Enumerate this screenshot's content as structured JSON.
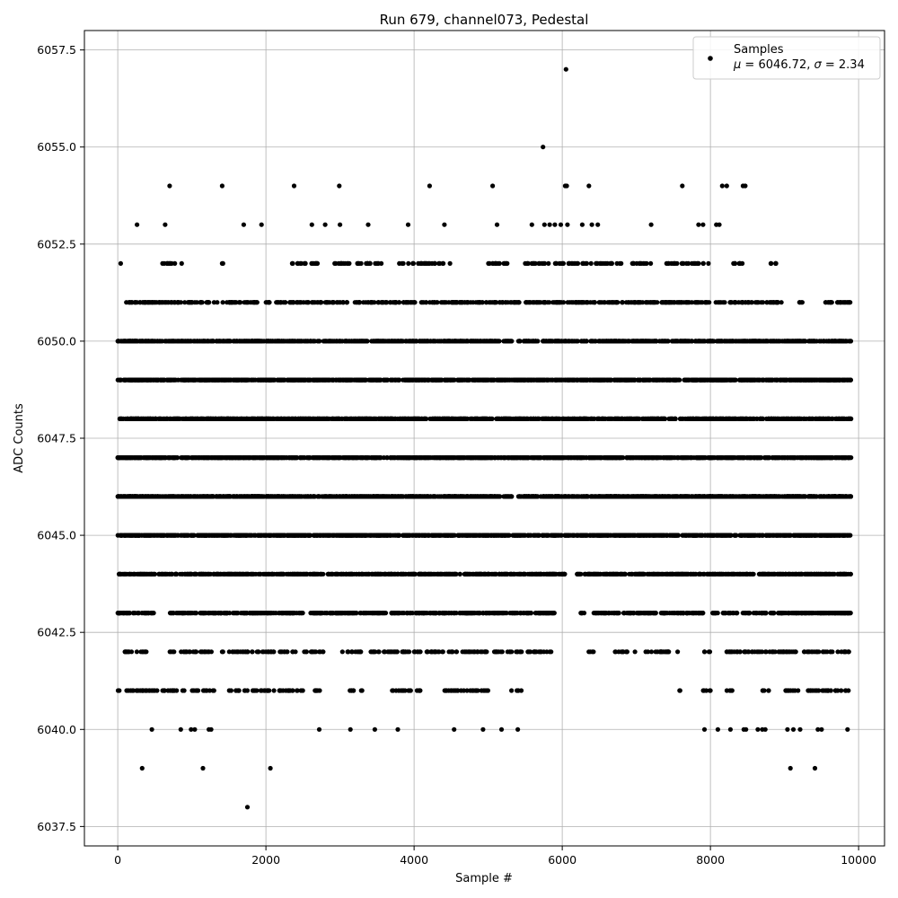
{
  "chart_data": {
    "type": "scatter",
    "title": "Run 679, channel073, Pedestal",
    "xlabel": "Sample #",
    "ylabel": "ADC Counts",
    "xlim": [
      -450,
      10350
    ],
    "ylim": [
      6037.0,
      6058.0
    ],
    "xticks": [
      0,
      2000,
      4000,
      6000,
      8000,
      10000
    ],
    "xtick_labels": [
      "0",
      "2000",
      "4000",
      "6000",
      "8000",
      "10000"
    ],
    "yticks": [
      6037.5,
      6040.0,
      6042.5,
      6045.0,
      6047.5,
      6050.0,
      6052.5,
      6055.0,
      6057.5
    ],
    "ytick_labels": [
      "6037.5",
      "6040.0",
      "6042.5",
      "6045.0",
      "6047.5",
      "6050.0",
      "6052.5",
      "6055.0",
      "6057.5"
    ],
    "grid": true,
    "legend": {
      "position": "upper-right",
      "series_label": "Samples",
      "stats_mu": "6046.72",
      "stats_sigma": "2.34"
    },
    "series": [
      {
        "name": "Samples",
        "color": "#000000",
        "n_samples": 9900,
        "mean": 6046.72,
        "std": 2.34,
        "bands": [
          {
            "y": 6041,
            "ranges": [
              [
                0,
                900
              ],
              [
                1000,
                1300
              ],
              [
                1500,
                2500
              ],
              [
                2600,
                2800
              ],
              [
                3100,
                3300
              ],
              [
                3700,
                3900
              ],
              [
                3900,
                4100
              ],
              [
                4400,
                4700
              ],
              [
                4700,
                5000
              ],
              [
                5300,
                5450
              ],
              [
                7550,
                7600
              ],
              [
                7900,
                8000
              ],
              [
                8200,
                8300
              ],
              [
                8700,
                8800
              ],
              [
                9000,
                9200
              ],
              [
                9300,
                9900
              ]
            ],
            "density": 0.45
          },
          {
            "y": 6042,
            "ranges": [
              [
                50,
                400
              ],
              [
                700,
                1300
              ],
              [
                1400,
                2400
              ],
              [
                2500,
                2800
              ],
              [
                3000,
                3300
              ],
              [
                3400,
                3600
              ],
              [
                3600,
                5900
              ],
              [
                6350,
                6450
              ],
              [
                6700,
                7000
              ],
              [
                7100,
                7600
              ],
              [
                7900,
                8000
              ],
              [
                8200,
                8900
              ],
              [
                8900,
                9900
              ]
            ],
            "density": 0.5
          },
          {
            "y": 6043,
            "ranges": [
              [
                0,
                500
              ],
              [
                700,
                2300
              ],
              [
                2300,
                2500
              ],
              [
                2600,
                5900
              ],
              [
                6250,
                6300
              ],
              [
                6400,
                7200
              ],
              [
                7200,
                7700
              ],
              [
                7700,
                7900
              ],
              [
                8000,
                9900
              ]
            ],
            "density": 0.9
          },
          {
            "y": 6044,
            "ranges": [
              [
                0,
                6050
              ],
              [
                6200,
                7400
              ],
              [
                7400,
                9900
              ]
            ],
            "density": 1.2
          },
          {
            "y": 6045,
            "ranges": [
              [
                0,
                9900
              ]
            ],
            "density": 1.4
          },
          {
            "y": 6046,
            "ranges": [
              [
                0,
                9900
              ]
            ],
            "density": 1.5
          },
          {
            "y": 6047,
            "ranges": [
              [
                0,
                9900
              ]
            ],
            "density": 1.5
          },
          {
            "y": 6048,
            "ranges": [
              [
                0,
                9900
              ]
            ],
            "density": 1.4
          },
          {
            "y": 6049,
            "ranges": [
              [
                0,
                9900
              ]
            ],
            "density": 1.4
          },
          {
            "y": 6050,
            "ranges": [
              [
                0,
                9900
              ]
            ],
            "density": 1.1
          },
          {
            "y": 6051,
            "ranges": [
              [
                100,
                500
              ],
              [
                400,
                1300
              ],
              [
                1300,
                1900
              ],
              [
                2000,
                3100
              ],
              [
                3200,
                5500
              ],
              [
                5500,
                9000
              ],
              [
                9200,
                9250
              ],
              [
                9550,
                9900
              ]
            ],
            "density": 0.7
          },
          {
            "y": 6052,
            "ranges": [
              [
                600,
                900
              ],
              [
                1400,
                1450
              ],
              [
                2350,
                2800
              ],
              [
                2900,
                3600
              ],
              [
                3800,
                4500
              ],
              [
                5000,
                5350
              ],
              [
                5500,
                6800
              ],
              [
                6900,
                7200
              ],
              [
                7400,
                8000
              ],
              [
                8300,
                8500
              ],
              [
                8800,
                8900
              ]
            ],
            "density": 0.45
          }
        ],
        "points": [
          [
            40,
            6052
          ],
          [
            260,
            6053
          ],
          [
            640,
            6053
          ],
          [
            700,
            6054
          ],
          [
            1410,
            6054
          ],
          [
            1700,
            6053
          ],
          [
            1940,
            6053
          ],
          [
            2380,
            6054
          ],
          [
            2620,
            6053
          ],
          [
            2800,
            6053
          ],
          [
            2990,
            6054
          ],
          [
            3000,
            6053
          ],
          [
            3380,
            6053
          ],
          [
            3920,
            6053
          ],
          [
            4210,
            6054
          ],
          [
            4410,
            6053
          ],
          [
            5060,
            6054
          ],
          [
            5120,
            6053
          ],
          [
            5590,
            6053
          ],
          [
            5740,
            6055
          ],
          [
            5760,
            6053
          ],
          [
            5830,
            6053
          ],
          [
            5900,
            6053
          ],
          [
            5980,
            6053
          ],
          [
            6040,
            6054
          ],
          [
            6060,
            6054
          ],
          [
            6050,
            6057
          ],
          [
            6070,
            6053
          ],
          [
            6270,
            6053
          ],
          [
            6360,
            6054
          ],
          [
            6400,
            6053
          ],
          [
            6480,
            6053
          ],
          [
            7200,
            6053
          ],
          [
            7620,
            6054
          ],
          [
            7840,
            6053
          ],
          [
            7900,
            6053
          ],
          [
            8080,
            6053
          ],
          [
            8120,
            6053
          ],
          [
            8160,
            6054
          ],
          [
            8220,
            6054
          ],
          [
            8440,
            6054
          ],
          [
            8470,
            6054
          ],
          [
            460,
            6040
          ],
          [
            850,
            6040
          ],
          [
            990,
            6040
          ],
          [
            1040,
            6040
          ],
          [
            1230,
            6040
          ],
          [
            1260,
            6040
          ],
          [
            2720,
            6040
          ],
          [
            3140,
            6040
          ],
          [
            3470,
            6040
          ],
          [
            3780,
            6040
          ],
          [
            4540,
            6040
          ],
          [
            4930,
            6040
          ],
          [
            5180,
            6040
          ],
          [
            5400,
            6040
          ],
          [
            7920,
            6040
          ],
          [
            8100,
            6040
          ],
          [
            8270,
            6040
          ],
          [
            8450,
            6040
          ],
          [
            8480,
            6040
          ],
          [
            8640,
            6040
          ],
          [
            8700,
            6040
          ],
          [
            8740,
            6040
          ],
          [
            9040,
            6040
          ],
          [
            9120,
            6040
          ],
          [
            9210,
            6040
          ],
          [
            9450,
            6040
          ],
          [
            9500,
            6040
          ],
          [
            9850,
            6040
          ],
          [
            330,
            6039
          ],
          [
            1150,
            6039
          ],
          [
            2060,
            6039
          ],
          [
            9080,
            6039
          ],
          [
            9410,
            6039
          ],
          [
            1750,
            6038
          ]
        ]
      }
    ]
  }
}
